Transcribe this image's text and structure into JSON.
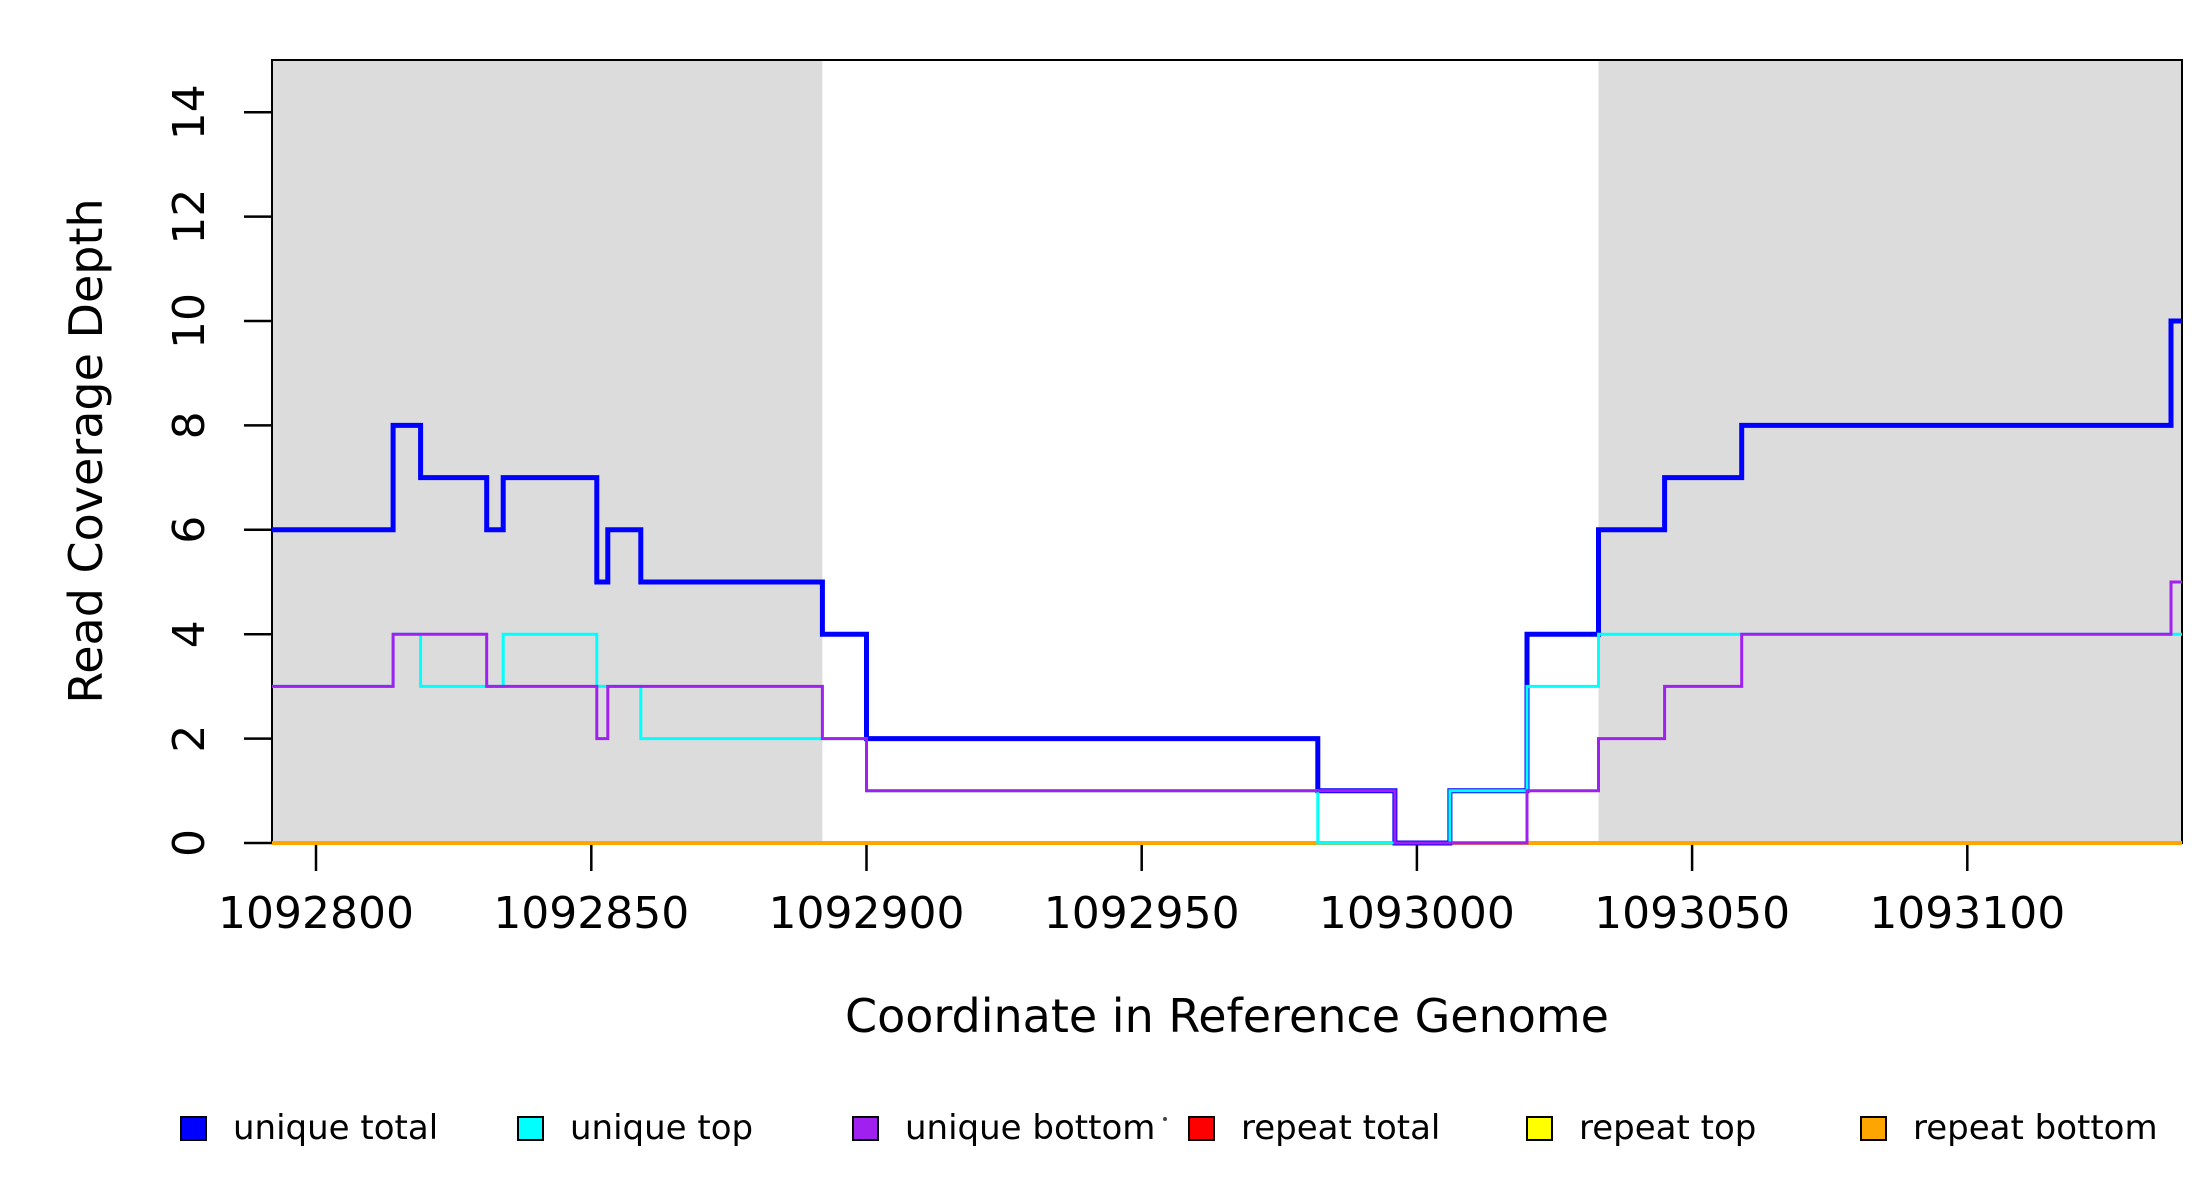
{
  "page": {
    "background": "#ffffff"
  },
  "chart_data": {
    "type": "line",
    "subtype": "step-coverage-plot",
    "title": "",
    "xlabel": "Coordinate in Reference Genome",
    "ylabel": "Read Coverage Depth",
    "xlim": [
      1092792,
      1093139
    ],
    "ylim": [
      0,
      15
    ],
    "x_ticks": [
      1092800,
      1092850,
      1092900,
      1092950,
      1093000,
      1093050,
      1093100
    ],
    "y_ticks": [
      0,
      2,
      4,
      6,
      8,
      10,
      12,
      14
    ],
    "grid": false,
    "legend_position": "bottom",
    "shaded_regions": {
      "color": "#DCDCDC",
      "ranges": [
        [
          1092792,
          1092892
        ],
        [
          1093033,
          1093139
        ]
      ]
    },
    "series": [
      {
        "name": "unique-total",
        "label": "unique total",
        "color": "#0000FF",
        "width": 5,
        "z": 4,
        "segments": [
          [
            1092792,
            1092814,
            6
          ],
          [
            1092814,
            1092819,
            8
          ],
          [
            1092819,
            1092831,
            7
          ],
          [
            1092831,
            1092834,
            6
          ],
          [
            1092834,
            1092851,
            7
          ],
          [
            1092851,
            1092853,
            5
          ],
          [
            1092853,
            1092859,
            6
          ],
          [
            1092859,
            1092892,
            5
          ],
          [
            1092892,
            1092900,
            4
          ],
          [
            1092900,
            1092982,
            2
          ],
          [
            1092982,
            1092996,
            1
          ],
          [
            1092996,
            1093006,
            0
          ],
          [
            1093006,
            1093020,
            1
          ],
          [
            1093020,
            1093033,
            4
          ],
          [
            1093033,
            1093045,
            6
          ],
          [
            1093045,
            1093059,
            7
          ],
          [
            1093059,
            1093137,
            8
          ],
          [
            1093137,
            1093139,
            10
          ]
        ]
      },
      {
        "name": "unique-top",
        "label": "unique top",
        "color": "#00FFFF",
        "width": 3,
        "z": 5,
        "segments": [
          [
            1092792,
            1092814,
            3
          ],
          [
            1092814,
            1092819,
            4
          ],
          [
            1092819,
            1092834,
            3
          ],
          [
            1092834,
            1092851,
            4
          ],
          [
            1092851,
            1092859,
            3
          ],
          [
            1092859,
            1092900,
            2
          ],
          [
            1092900,
            1092982,
            1
          ],
          [
            1092982,
            1093006,
            0
          ],
          [
            1093006,
            1093020,
            1
          ],
          [
            1093020,
            1093033,
            3
          ],
          [
            1093033,
            1093139,
            4
          ]
        ]
      },
      {
        "name": "unique-bottom",
        "label": "unique bottom",
        "color": "#A020F0",
        "width": 3,
        "z": 6,
        "segments": [
          [
            1092792,
            1092814,
            3
          ],
          [
            1092814,
            1092831,
            4
          ],
          [
            1092831,
            1092851,
            3
          ],
          [
            1092851,
            1092853,
            2
          ],
          [
            1092853,
            1092892,
            3
          ],
          [
            1092892,
            1092900,
            2
          ],
          [
            1092900,
            1092996,
            1
          ],
          [
            1092996,
            1093020,
            0
          ],
          [
            1093020,
            1093033,
            1
          ],
          [
            1093033,
            1093045,
            2
          ],
          [
            1093045,
            1093059,
            3
          ],
          [
            1093059,
            1093137,
            4
          ],
          [
            1093137,
            1093139,
            5
          ]
        ]
      },
      {
        "name": "repeat-total",
        "label": "repeat total",
        "color": "#FF0000",
        "width": 3,
        "z": 1,
        "segments": [
          [
            1092792,
            1093139,
            0
          ]
        ]
      },
      {
        "name": "repeat-top",
        "label": "repeat top",
        "color": "#FFFF00",
        "width": 3,
        "z": 2,
        "segments": [
          [
            1092792,
            1093139,
            0
          ]
        ]
      },
      {
        "name": "repeat-bottom",
        "label": "repeat bottom",
        "color": "#FFA500",
        "width": 4,
        "z": 3,
        "segments": [
          [
            1092792,
            1093139,
            0
          ]
        ]
      }
    ]
  }
}
